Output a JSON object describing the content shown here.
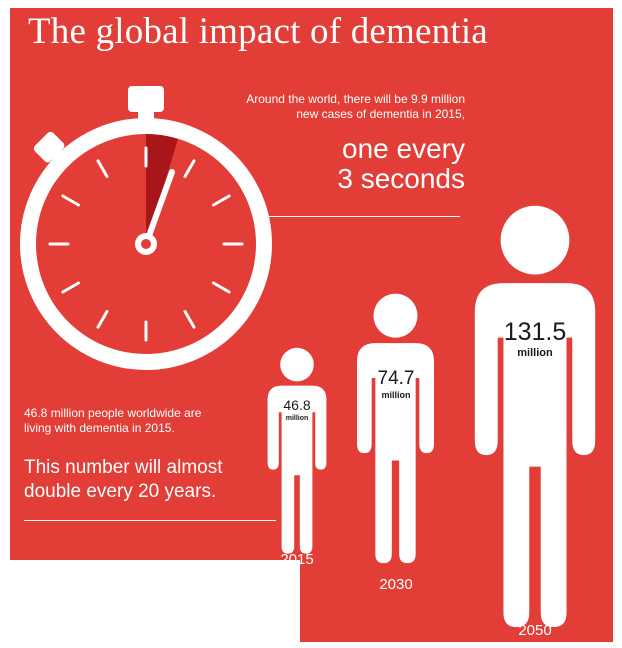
{
  "title": "The global impact of dementia",
  "stopwatch": {
    "intro_lines": [
      "Around the world, there will be 9.9 million",
      "new cases of dementia in 2015,"
    ],
    "highlight_lines": [
      "one every",
      "3 seconds"
    ]
  },
  "living": {
    "lines": [
      "46.8 million people worldwide are",
      "living with dementia in 2015."
    ],
    "emphasis_lines": [
      "This number will almost",
      "double every 20 years."
    ]
  },
  "figures": [
    {
      "value": "46.8",
      "unit": "million",
      "year": "2015"
    },
    {
      "value": "74.7",
      "unit": "million",
      "year": "2030"
    },
    {
      "value": "131.5",
      "unit": "million",
      "year": "2050"
    }
  ],
  "colors": {
    "background": "#e23d36",
    "foreground": "#ffffff",
    "hand_wedge": "#a8161a"
  }
}
